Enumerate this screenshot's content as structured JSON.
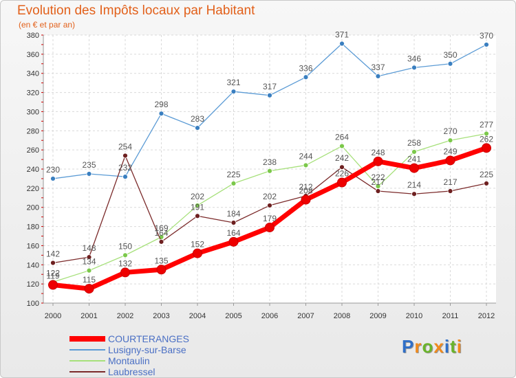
{
  "header": {
    "title": "Evolution des Impôts locaux par Habitant",
    "subtitle": "(en € et par an)"
  },
  "logo": {
    "text": "Proxiti",
    "letters": [
      {
        "ch": "P",
        "color": "#2f6fc8"
      },
      {
        "ch": "r",
        "color": "#f08a1c"
      },
      {
        "ch": "o",
        "color": "#6ab42a"
      },
      {
        "ch": "x",
        "color": "#f08a1c"
      },
      {
        "ch": "i",
        "color": "#2f6fc8"
      },
      {
        "ch": "t",
        "color": "#6ab42a"
      },
      {
        "ch": "i",
        "color": "#f08a1c"
      }
    ]
  },
  "chart_data": {
    "type": "line",
    "title": "Evolution des Impôts locaux par Habitant",
    "subtitle": "(en € et par an)",
    "xlabel": "",
    "ylabel": "",
    "ylim": [
      100,
      380
    ],
    "ytick_step": 20,
    "grid": true,
    "legend_position": "bottom-left",
    "x": [
      "2000",
      "2001",
      "2002",
      "2003",
      "2004",
      "2005",
      "2006",
      "2007",
      "2008",
      "2009",
      "2010",
      "2011",
      "2012"
    ],
    "series": [
      {
        "name": "COURTERANGES",
        "color": "#ff0000",
        "marker": "#ee0000",
        "emphasis": true,
        "values": [
          119,
          115,
          132,
          135,
          152,
          164,
          179,
          208,
          226,
          248,
          241,
          249,
          262
        ]
      },
      {
        "name": "Lusigny-sur-Barse",
        "color": "#5b9bd5",
        "marker": "#3a7fc0",
        "emphasis": false,
        "values": [
          230,
          235,
          232,
          298,
          283,
          321,
          317,
          336,
          371,
          337,
          346,
          350,
          370
        ]
      },
      {
        "name": "Montaulin",
        "color": "#a6e07a",
        "marker": "#7bc84a",
        "emphasis": false,
        "values": [
          122,
          134,
          150,
          169,
          202,
          225,
          238,
          244,
          264,
          222,
          258,
          270,
          277
        ]
      },
      {
        "name": "Laubressel",
        "color": "#7b2a2a",
        "marker": "#6e2020",
        "emphasis": false,
        "values": [
          142,
          148,
          254,
          164,
          191,
          184,
          202,
          212,
          242,
          217,
          214,
          217,
          225
        ]
      }
    ]
  }
}
